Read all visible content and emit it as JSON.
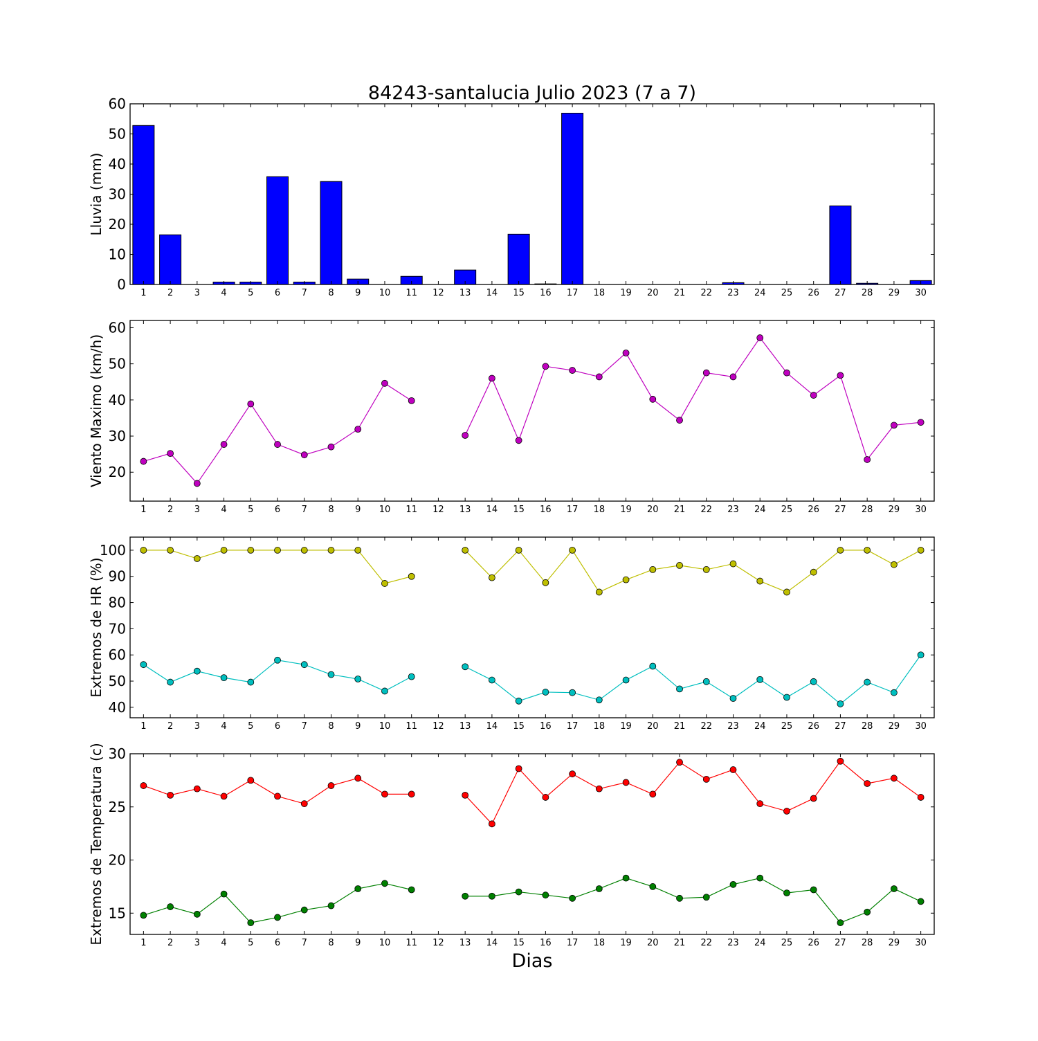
{
  "chart_data": {
    "title": "84243-santalucia Julio 2023  (7 a 7)",
    "xlabel": "Dias",
    "days": [
      1,
      2,
      3,
      4,
      5,
      6,
      7,
      8,
      9,
      10,
      11,
      12,
      13,
      14,
      15,
      16,
      17,
      18,
      19,
      20,
      21,
      22,
      23,
      24,
      25,
      26,
      27,
      28,
      29,
      30
    ],
    "panels": [
      {
        "type": "bar",
        "ylabel": "Lluvia (mm)",
        "ylim": [
          0,
          60
        ],
        "yticks": [
          0,
          10,
          20,
          30,
          40,
          50,
          60
        ],
        "series": [
          {
            "color": "#0000ff",
            "values": [
              52.8,
              16.5,
              0,
              0.8,
              0.8,
              35.8,
              0.8,
              34.2,
              1.8,
              0,
              2.7,
              0,
              4.8,
              0,
              16.7,
              0.2,
              56.9,
              0,
              0,
              0,
              0,
              0,
              0.6,
              0,
              0,
              0,
              26.1,
              0.4,
              0,
              1.3
            ]
          }
        ]
      },
      {
        "type": "line",
        "ylabel": "Viento Maximo (km/h)",
        "ylim": [
          12,
          62
        ],
        "yticks": [
          20,
          30,
          40,
          50,
          60
        ],
        "series": [
          {
            "color": "#bf00bf",
            "values": [
              23.0,
              25.2,
              16.9,
              27.7,
              38.9,
              27.7,
              24.8,
              27.0,
              31.9,
              44.6,
              39.8,
              null,
              30.2,
              46.0,
              28.8,
              49.3,
              48.2,
              46.4,
              53.0,
              40.2,
              34.4,
              47.5,
              46.4,
              57.2,
              47.5,
              41.3,
              46.8,
              23.5,
              33.0,
              33.8
            ]
          }
        ]
      },
      {
        "type": "line",
        "ylabel": "Extremos de HR (%)",
        "ylim": [
          36,
          105
        ],
        "yticks": [
          40,
          50,
          60,
          70,
          80,
          90,
          100
        ],
        "series": [
          {
            "color": "#bfbf00",
            "values": [
              100,
              100,
              96.8,
              100,
              100,
              100,
              100,
              100,
              100,
              87.3,
              90.0,
              null,
              100,
              89.5,
              100,
              87.6,
              100,
              84.0,
              88.7,
              92.6,
              94.2,
              92.6,
              94.8,
              88.2,
              84.0,
              91.6,
              100,
              100,
              94.5,
              100
            ]
          },
          {
            "color": "#00bfbf",
            "values": [
              56.3,
              49.6,
              53.8,
              51.3,
              49.6,
              58.0,
              56.3,
              52.5,
              50.8,
              46.2,
              51.7,
              null,
              55.5,
              50.4,
              42.4,
              45.8,
              45.6,
              42.8,
              50.4,
              55.7,
              47.0,
              49.8,
              43.4,
              50.6,
              43.8,
              49.8,
              41.3,
              49.6,
              45.6,
              60.0
            ]
          }
        ]
      },
      {
        "type": "line",
        "ylabel": "Extremos de Temperatura (c)",
        "ylim": [
          13,
          30
        ],
        "yticks": [
          15,
          20,
          25,
          30
        ],
        "series": [
          {
            "color": "#ff0000",
            "values": [
              27.0,
              26.1,
              26.7,
              26.0,
              27.5,
              26.0,
              25.3,
              27.0,
              27.7,
              26.2,
              26.2,
              null,
              26.1,
              23.4,
              28.6,
              25.9,
              28.1,
              26.7,
              27.3,
              26.2,
              29.2,
              27.6,
              28.5,
              25.3,
              24.6,
              25.8,
              29.3,
              27.2,
              27.7,
              25.9
            ]
          },
          {
            "color": "#008000",
            "values": [
              14.8,
              15.6,
              14.9,
              16.8,
              14.1,
              14.6,
              15.3,
              15.7,
              17.3,
              17.8,
              17.2,
              null,
              16.6,
              16.6,
              17.0,
              16.7,
              16.4,
              17.3,
              18.3,
              17.5,
              16.4,
              16.5,
              17.7,
              18.3,
              16.9,
              17.2,
              14.1,
              15.1,
              17.3,
              16.1
            ]
          }
        ]
      }
    ]
  }
}
